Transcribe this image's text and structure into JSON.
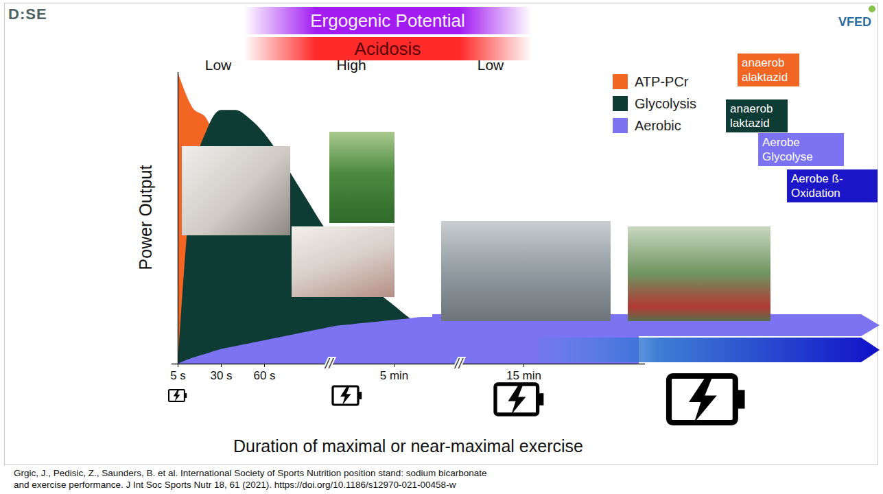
{
  "chart_data": {
    "type": "area",
    "x_label": "Duration of maximal or near-maximal exercise",
    "y_label": "Power Output",
    "categories": [
      "5 s",
      null,
      null,
      "30 s",
      null,
      null,
      "60 s",
      null,
      null,
      null,
      null,
      null,
      null,
      null,
      null,
      "5 min",
      null,
      null,
      null,
      null,
      null,
      null,
      null,
      null,
      "15 min",
      null,
      null,
      null,
      null,
      null,
      null,
      null,
      null
    ],
    "ylim": [
      0,
      100
    ],
    "tick_labels": "x",
    "legend": "top-right",
    "series": [
      {
        "name": "ATP-PCr",
        "color": "#f26522",
        "values": [
          100,
          88,
          84,
          70,
          50,
          30,
          15,
          6,
          2,
          0,
          0,
          0,
          0,
          0,
          0,
          0,
          0,
          0,
          0,
          0,
          0,
          0,
          0,
          0,
          0,
          0,
          0,
          0,
          0,
          0,
          0,
          0,
          0
        ]
      },
      {
        "name": "Glycolysis",
        "color": "#0e3b33",
        "values": [
          0,
          62,
          80,
          87,
          87,
          84,
          79,
          72,
          64,
          56,
          48,
          41,
          35,
          29,
          24,
          20,
          16,
          13,
          10,
          7,
          4,
          2,
          0,
          0,
          0,
          0,
          0,
          0,
          0,
          0,
          0,
          0,
          0
        ]
      },
      {
        "name": "Aerobic",
        "color": "#7b73f2",
        "values": [
          0,
          2,
          3.5,
          5,
          6,
          7,
          8,
          9,
          10,
          11,
          12,
          13,
          13.5,
          14,
          14.5,
          15,
          15.5,
          16,
          16,
          16,
          16,
          16,
          16,
          16,
          16,
          16,
          16,
          16,
          16,
          16,
          16,
          16,
          16
        ]
      }
    ],
    "energy_labels": [
      {
        "text": "anaerob alaktazid",
        "color": "#f26522"
      },
      {
        "text": "anaerob laktazid",
        "color": "#0e3b33"
      },
      {
        "text": "Aerobe Glycolyse",
        "color": "#7b73f2"
      },
      {
        "text": "Aerobe ß-Oxidation",
        "color": "#1c16c9"
      }
    ],
    "bands": [
      {
        "label": "Ergogenic Potential",
        "color": "#a21cf2"
      },
      {
        "label": "Acidosis",
        "color": "#ff2a2a",
        "levels": [
          "Low",
          "High",
          "Low"
        ]
      }
    ],
    "axis_breaks": [
      {
        "between": [
          "60 s",
          "5 min"
        ],
        "label": "//"
      },
      {
        "between": [
          "5 min",
          "15 min"
        ],
        "label": "//"
      }
    ],
    "logos": [
      "D:SE",
      "VFED"
    ],
    "source": [
      "Grgic, J., Pedisic, Z., Saunders, B. et al. International Society of Sports Nutrition position stand: sodium bicarbonate",
      "and exercise performance. J Int Soc Sports Nutr 18, 61 (2021). https://doi.org/10.1186/s12970-021-00458-w"
    ]
  }
}
